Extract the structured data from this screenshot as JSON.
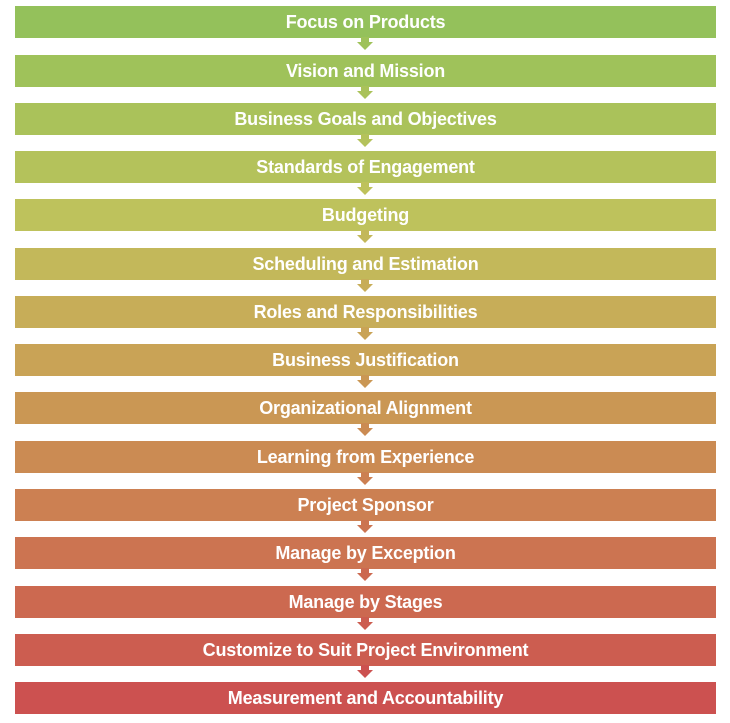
{
  "steps": [
    {
      "label": "Focus on Products",
      "color": "#94c15b"
    },
    {
      "label": "Vision and Mission",
      "color": "#9fc25a"
    },
    {
      "label": "Business Goals and Objectives",
      "color": "#aac25a"
    },
    {
      "label": "Standards of Engagement",
      "color": "#b4c25b"
    },
    {
      "label": "Budgeting",
      "color": "#bec25c"
    },
    {
      "label": "Scheduling and Estimation",
      "color": "#c3b85a"
    },
    {
      "label": "Roles and Responsibilities",
      "color": "#c7ad58"
    },
    {
      "label": "Business Justification",
      "color": "#c9a356"
    },
    {
      "label": "Organizational Alignment",
      "color": "#ca9754"
    },
    {
      "label": "Learning from Experience",
      "color": "#cb8b53"
    },
    {
      "label": "Project Sponsor",
      "color": "#cc8052"
    },
    {
      "label": "Manage by Exception",
      "color": "#cc7451"
    },
    {
      "label": "Manage by Stages",
      "color": "#cc6950"
    },
    {
      "label": "Customize to Suit Project Environment",
      "color": "#cc5d50"
    },
    {
      "label": "Measurement and Accountability",
      "color": "#cc5150"
    }
  ]
}
